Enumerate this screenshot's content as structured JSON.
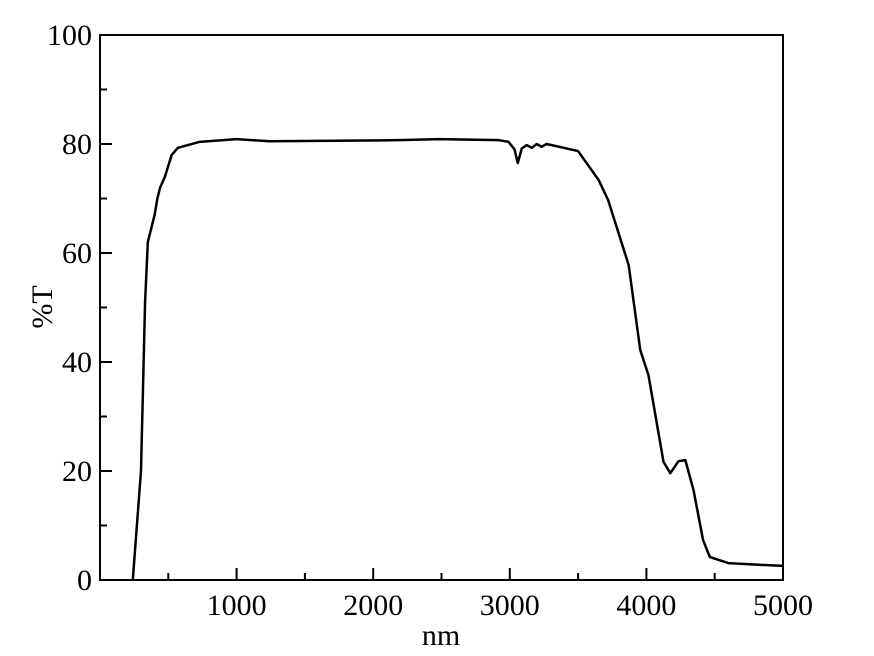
{
  "chart_data": {
    "type": "line",
    "xlabel": "nm",
    "ylabel": "%T",
    "xlim": [
      0,
      5000
    ],
    "ylim": [
      0,
      100
    ],
    "xticks": [
      1000,
      2000,
      3000,
      4000,
      5000
    ],
    "xminorticks": [
      500,
      1500,
      2500,
      3500,
      4500
    ],
    "yticks": [
      0,
      20,
      40,
      60,
      80,
      100
    ],
    "yminorticks": [
      10,
      30,
      50,
      70,
      90
    ],
    "series": [
      {
        "color": "#000000",
        "x": [
          240,
          300,
          330,
          350,
          400,
          420,
          440,
          475,
          525,
          570,
          730,
          1000,
          1240,
          2190,
          2480,
          2920,
          2990,
          3035,
          3058,
          3088,
          3124,
          3160,
          3197,
          3233,
          3270,
          3500,
          3650,
          3720,
          3870,
          3955,
          4015,
          4125,
          4175,
          4235,
          4285,
          4345,
          4415,
          4465,
          4600,
          4820,
          5000
        ],
        "values": [
          0,
          20,
          51,
          62,
          67,
          70,
          72,
          74,
          78,
          79.3,
          80.4,
          80.9,
          80.5,
          80.7,
          80.9,
          80.7,
          80.4,
          79,
          76.5,
          79.2,
          79.8,
          79.3,
          80,
          79.5,
          80,
          78.7,
          73.4,
          69.7,
          57.8,
          42.2,
          37.6,
          21.7,
          19.6,
          21.8,
          22,
          16.5,
          7.3,
          4.2,
          3.1,
          2.8,
          2.6
        ]
      }
    ]
  }
}
